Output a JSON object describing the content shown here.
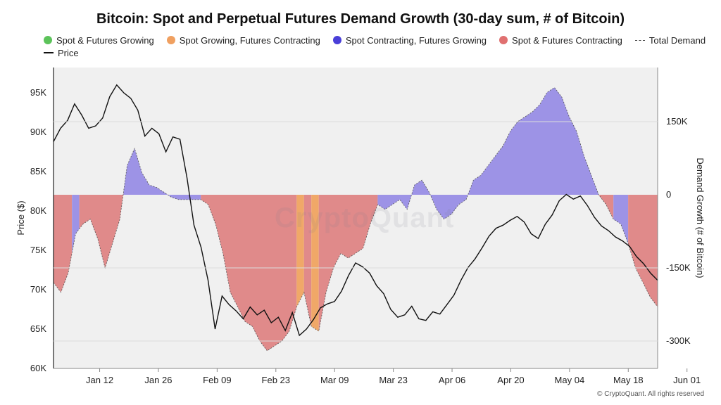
{
  "chart_data": {
    "type": "area",
    "title": "Bitcoin: Spot and Perpetual Futures Demand Growth (30-day sum, # of Bitcoin)",
    "legend": [
      {
        "label": "Spot & Futures Growing",
        "color": "#5cc35a",
        "shape": "dot"
      },
      {
        "label": "Spot Growing, Futures Contracting",
        "color": "#f0a060",
        "shape": "dot"
      },
      {
        "label": "Spot Contracting, Futures Growing",
        "color": "#4a3fd8",
        "shape": "dot"
      },
      {
        "label": "Spot & Futures Contracting",
        "color": "#e07070",
        "shape": "dot"
      },
      {
        "label": "Total Demand",
        "color": "#444444",
        "shape": "dashed-line"
      },
      {
        "label": "Price",
        "color": "#111111",
        "shape": "line"
      }
    ],
    "left_axis": {
      "label": "Price ($)",
      "ticks": [
        60000,
        65000,
        70000,
        75000,
        80000,
        85000,
        90000,
        95000
      ],
      "tick_labels": [
        "60K",
        "65K",
        "70K",
        "75K",
        "80K",
        "85K",
        "90K",
        "95K"
      ]
    },
    "right_axis": {
      "label": "Demand Growth (# of Bitcoin)",
      "ticks": [
        150000,
        0,
        -150000,
        -300000
      ],
      "tick_labels": [
        "150K",
        "0",
        "-150K",
        "-300K"
      ]
    },
    "x_axis": {
      "tick_labels": [
        "Jan 12",
        "Jan 26",
        "Feb 09",
        "Feb 23",
        "Mar 09",
        "Mar 23",
        "Apr 06",
        "Apr 20",
        "May 04",
        "May 18",
        "Jun 01"
      ]
    },
    "price_series": {
      "name": "Price",
      "points": [
        [
          0,
          88800
        ],
        [
          1,
          90500
        ],
        [
          2,
          91500
        ],
        [
          3,
          93600
        ],
        [
          4,
          92200
        ],
        [
          5,
          90500
        ],
        [
          6,
          90800
        ],
        [
          7,
          91800
        ],
        [
          8,
          94500
        ],
        [
          9,
          96000
        ],
        [
          10,
          95000
        ],
        [
          11,
          94300
        ],
        [
          12,
          92800
        ],
        [
          13,
          89500
        ],
        [
          14,
          90500
        ],
        [
          15,
          89800
        ],
        [
          16,
          87500
        ],
        [
          17,
          89400
        ],
        [
          18,
          89100
        ],
        [
          19,
          84200
        ],
        [
          20,
          78200
        ],
        [
          21,
          75400
        ],
        [
          22,
          71200
        ],
        [
          23,
          65000
        ],
        [
          24,
          69200
        ],
        [
          25,
          68100
        ],
        [
          26,
          67300
        ],
        [
          27,
          66300
        ],
        [
          28,
          67800
        ],
        [
          29,
          66800
        ],
        [
          30,
          67400
        ],
        [
          31,
          65800
        ],
        [
          32,
          66500
        ],
        [
          33,
          64800
        ],
        [
          34,
          67100
        ],
        [
          35,
          64200
        ],
        [
          36,
          65000
        ],
        [
          37,
          66200
        ],
        [
          38,
          67700
        ],
        [
          39,
          68200
        ],
        [
          40,
          68500
        ],
        [
          41,
          69800
        ],
        [
          42,
          71800
        ],
        [
          43,
          73400
        ],
        [
          44,
          72900
        ],
        [
          45,
          72100
        ],
        [
          46,
          70500
        ],
        [
          47,
          69500
        ],
        [
          48,
          67500
        ],
        [
          49,
          66500
        ],
        [
          50,
          66800
        ],
        [
          51,
          67900
        ],
        [
          52,
          66300
        ],
        [
          53,
          66100
        ],
        [
          54,
          67200
        ],
        [
          55,
          66900
        ],
        [
          56,
          68100
        ],
        [
          57,
          69300
        ],
        [
          58,
          71200
        ],
        [
          59,
          72800
        ],
        [
          60,
          73900
        ],
        [
          61,
          75300
        ],
        [
          62,
          76800
        ],
        [
          63,
          77800
        ],
        [
          64,
          78200
        ],
        [
          65,
          78800
        ],
        [
          66,
          79300
        ],
        [
          67,
          78600
        ],
        [
          68,
          77100
        ],
        [
          69,
          76500
        ],
        [
          70,
          78300
        ],
        [
          71,
          79500
        ],
        [
          72,
          81300
        ],
        [
          73,
          82100
        ],
        [
          74,
          81500
        ],
        [
          75,
          81900
        ],
        [
          76,
          80700
        ],
        [
          77,
          79200
        ],
        [
          78,
          78100
        ],
        [
          79,
          77500
        ],
        [
          80,
          76700
        ],
        [
          81,
          76200
        ],
        [
          82,
          75500
        ],
        [
          83,
          74200
        ],
        [
          84,
          73300
        ],
        [
          85,
          72100
        ],
        [
          86,
          71200
        ]
      ]
    },
    "demand_series": {
      "name": "Total Demand",
      "points": [
        [
          0,
          -180000
        ],
        [
          1,
          -200000
        ],
        [
          2,
          -160000
        ],
        [
          3,
          -80000
        ],
        [
          4,
          -60000
        ],
        [
          5,
          -50000
        ],
        [
          6,
          -90000
        ],
        [
          7,
          -150000
        ],
        [
          8,
          -100000
        ],
        [
          9,
          -50000
        ],
        [
          10,
          60000
        ],
        [
          11,
          95000
        ],
        [
          12,
          45000
        ],
        [
          13,
          20000
        ],
        [
          14,
          15000
        ],
        [
          15,
          5000
        ],
        [
          16,
          -5000
        ],
        [
          17,
          -10000
        ],
        [
          18,
          -10000
        ],
        [
          19,
          -10000
        ],
        [
          20,
          -10000
        ],
        [
          21,
          -20000
        ],
        [
          22,
          -60000
        ],
        [
          23,
          -120000
        ],
        [
          24,
          -200000
        ],
        [
          25,
          -230000
        ],
        [
          26,
          -260000
        ],
        [
          27,
          -270000
        ],
        [
          28,
          -300000
        ],
        [
          29,
          -320000
        ],
        [
          30,
          -310000
        ],
        [
          31,
          -300000
        ],
        [
          32,
          -280000
        ],
        [
          33,
          -230000
        ],
        [
          34,
          -200000
        ],
        [
          35,
          -270000
        ],
        [
          36,
          -280000
        ],
        [
          37,
          -200000
        ],
        [
          38,
          -150000
        ],
        [
          39,
          -120000
        ],
        [
          40,
          -130000
        ],
        [
          41,
          -120000
        ],
        [
          42,
          -110000
        ],
        [
          43,
          -60000
        ],
        [
          44,
          -20000
        ],
        [
          45,
          -30000
        ],
        [
          46,
          -20000
        ],
        [
          47,
          -10000
        ],
        [
          48,
          -30000
        ],
        [
          49,
          20000
        ],
        [
          50,
          30000
        ],
        [
          51,
          5000
        ],
        [
          52,
          -30000
        ],
        [
          53,
          -50000
        ],
        [
          54,
          -40000
        ],
        [
          55,
          -20000
        ],
        [
          56,
          -10000
        ],
        [
          57,
          30000
        ],
        [
          58,
          40000
        ],
        [
          59,
          60000
        ],
        [
          60,
          80000
        ],
        [
          61,
          100000
        ],
        [
          62,
          130000
        ],
        [
          63,
          150000
        ],
        [
          64,
          160000
        ],
        [
          65,
          170000
        ],
        [
          66,
          185000
        ],
        [
          67,
          210000
        ],
        [
          68,
          220000
        ],
        [
          69,
          200000
        ],
        [
          70,
          160000
        ],
        [
          71,
          130000
        ],
        [
          72,
          80000
        ],
        [
          73,
          40000
        ],
        [
          74,
          0
        ],
        [
          75,
          -20000
        ],
        [
          76,
          -50000
        ],
        [
          77,
          -60000
        ],
        [
          78,
          -100000
        ],
        [
          79,
          -150000
        ],
        [
          80,
          -180000
        ],
        [
          81,
          -210000
        ],
        [
          82,
          -230000
        ]
      ]
    },
    "regime_spans": [
      {
        "from": 0,
        "to": 2.5,
        "regime": "Spot & Futures Contracting"
      },
      {
        "from": 2.5,
        "to": 3.5,
        "regime": "Spot Contracting, Futures Growing"
      },
      {
        "from": 3.5,
        "to": 9.5,
        "regime": "Spot & Futures Contracting"
      },
      {
        "from": 9.5,
        "to": 20,
        "regime": "Spot Contracting, Futures Growing"
      },
      {
        "from": 20,
        "to": 33,
        "regime": "Spot & Futures Contracting"
      },
      {
        "from": 33,
        "to": 34,
        "regime": "Spot Growing, Futures Contracting"
      },
      {
        "from": 34,
        "to": 35,
        "regime": "Spot & Futures Contracting"
      },
      {
        "from": 35,
        "to": 36,
        "regime": "Spot Growing, Futures Contracting"
      },
      {
        "from": 36,
        "to": 44,
        "regime": "Spot & Futures Contracting"
      },
      {
        "from": 44,
        "to": 74,
        "regime": "Spot Contracting, Futures Growing"
      },
      {
        "from": 74,
        "to": 76,
        "regime": "Spot & Futures Contracting"
      },
      {
        "from": 76,
        "to": 78,
        "regime": "Spot Contracting, Futures Growing"
      },
      {
        "from": 78,
        "to": 82,
        "regime": "Spot & Futures Contracting"
      }
    ]
  },
  "watermark": "CryptoQuant",
  "copyright": "© CryptoQuant. All rights reserved"
}
